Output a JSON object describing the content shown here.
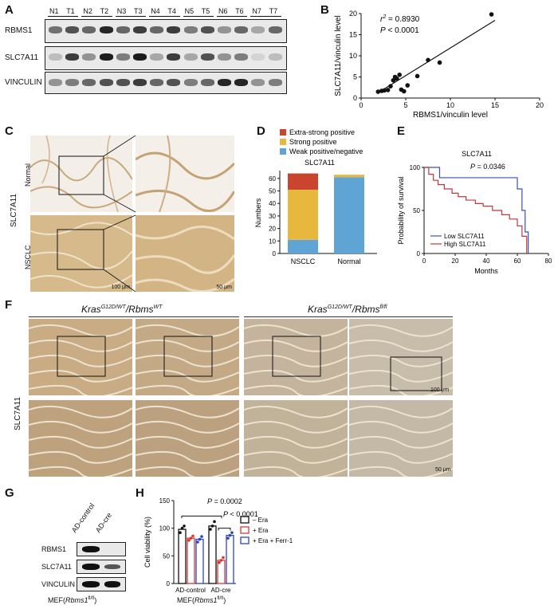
{
  "panels": {
    "A": {
      "label": "A",
      "lanes": [
        "N1",
        "T1",
        "N2",
        "T2",
        "N3",
        "T3",
        "N4",
        "T4",
        "N5",
        "T5",
        "N6",
        "T6",
        "N7",
        "T7"
      ],
      "rows": [
        "RBMS1",
        "SLC7A11",
        "VINCULIN"
      ]
    },
    "B": {
      "label": "B",
      "stats_r": "r",
      "stats_r_exp": "2",
      "stats_r_val": " = 0.8930",
      "stats_p": "P",
      "stats_p_val": " < 0.0001"
    },
    "C": {
      "label": "C",
      "side_label": "SLC7A11",
      "row_normal": "Normal",
      "row_nsclc": "NSCLC",
      "scale_100": "100 μm",
      "scale_50": "50 μm"
    },
    "D": {
      "label": "D",
      "legend": [
        "Extra-strong positive",
        "Strong positive",
        "Weak positive/negative"
      ]
    },
    "E": {
      "label": "E",
      "title": "SLC7A11",
      "p_label": "P",
      "p_value": " = 0.0346",
      "legend": [
        "Low  SLC7A11",
        "High SLC7A11"
      ]
    },
    "F": {
      "label": "F",
      "side_label": "SLC7A11",
      "group1_base": "Kras",
      "group1_sup1": "G12D/WT",
      "group1_mid": "/Rbms",
      "group1_sup2": "WT",
      "group2_base": "Kras",
      "group2_sup1": "G12D/WT",
      "group2_mid": "/Rbms",
      "group2_sup2": "fl/fl",
      "scale_100": "100 μm",
      "scale_50": "50 μm"
    },
    "G": {
      "label": "G",
      "lanes": [
        "AD-control",
        "AD-cre"
      ],
      "rows": [
        "RBMS1",
        "SLC7A11",
        "VINCULIN"
      ],
      "footer_base": "MEF(",
      "footer_italic": "Rbms1",
      "footer_sup": "fl/fl",
      "footer_end": ")"
    },
    "H": {
      "label": "H",
      "p1_label": "P",
      "p1_value": " = 0.0002",
      "p2_label": "P",
      "p2_value": " < 0.0001",
      "legend": [
        "– Era",
        "+ Era",
        "+ Era + Ferr-1"
      ],
      "footer_base": "MEF(",
      "footer_italic": "Rbms1",
      "footer_sup": "fl/fl",
      "footer_end": ")"
    }
  },
  "colors": {
    "extra_strong": "#c9452e",
    "strong": "#e8b83e",
    "weak": "#5ea4d4",
    "low_line": "#3a4fb8",
    "high_line": "#c0383a",
    "h_ctrl": "#111111",
    "h_era": "#d83a32",
    "h_ferr": "#2e44c4",
    "ihc_normal_bg": "#f2ede6",
    "ihc_tissue": "#c9a97a"
  },
  "chart_data": [
    {
      "type": "scatter",
      "panel": "B",
      "xlabel": "RBMS1/vinculin level",
      "ylabel": "SLC7A11/vinculin level",
      "xlim": [
        0,
        20
      ],
      "ylim": [
        0,
        20
      ],
      "xticks": [
        0,
        5,
        10,
        15,
        20
      ],
      "yticks": [
        0,
        5,
        10,
        15,
        20
      ],
      "points": [
        {
          "x": 1.9,
          "y": 1.5
        },
        {
          "x": 2.3,
          "y": 1.7
        },
        {
          "x": 2.6,
          "y": 1.8
        },
        {
          "x": 3.0,
          "y": 1.9
        },
        {
          "x": 3.3,
          "y": 2.8
        },
        {
          "x": 3.6,
          "y": 4.2
        },
        {
          "x": 3.8,
          "y": 5.0
        },
        {
          "x": 4.0,
          "y": 4.6
        },
        {
          "x": 4.3,
          "y": 5.5
        },
        {
          "x": 4.5,
          "y": 2.0
        },
        {
          "x": 4.8,
          "y": 1.6
        },
        {
          "x": 5.2,
          "y": 3.0
        },
        {
          "x": 6.3,
          "y": 5.2
        },
        {
          "x": 7.5,
          "y": 9.0
        },
        {
          "x": 8.8,
          "y": 8.4
        },
        {
          "x": 14.6,
          "y": 19.8
        }
      ],
      "fit": {
        "x": [
          2,
          15
        ],
        "y": [
          1.4,
          18.4
        ]
      }
    },
    {
      "type": "bar",
      "panel": "D",
      "title": "SLC7A11",
      "ylabel": "Numbers",
      "categories": [
        "NSCLC",
        "Normal"
      ],
      "ylim": [
        0,
        65
      ],
      "yticks": [
        0,
        10,
        20,
        30,
        40,
        50,
        60
      ],
      "series": [
        {
          "name": "Weak positive/negative",
          "values": [
            11,
            61
          ]
        },
        {
          "name": "Strong positive",
          "values": [
            40,
            2
          ]
        },
        {
          "name": "Extra-strong positive",
          "values": [
            13,
            0
          ]
        }
      ]
    },
    {
      "type": "line",
      "panel": "E",
      "xlabel": "Months",
      "ylabel": "Probability of survival",
      "xlim": [
        0,
        80
      ],
      "ylim": [
        0,
        100
      ],
      "xticks": [
        0,
        20,
        40,
        60,
        80
      ],
      "yticks": [
        0,
        50,
        100
      ],
      "series": [
        {
          "name": "Low  SLC7A11",
          "x": [
            0,
            10,
            10,
            60,
            60,
            63,
            63,
            65,
            65,
            67,
            67
          ],
          "y": [
            100,
            100,
            88,
            88,
            75,
            75,
            50,
            50,
            25,
            25,
            0
          ]
        },
        {
          "name": "High SLC7A11",
          "x": [
            0,
            3,
            3,
            6,
            6,
            9,
            9,
            13,
            13,
            18,
            18,
            22,
            22,
            27,
            27,
            33,
            33,
            38,
            38,
            44,
            44,
            50,
            50,
            55,
            55,
            60,
            60,
            63,
            63,
            66,
            66
          ],
          "y": [
            100,
            100,
            92,
            92,
            85,
            85,
            80,
            80,
            75,
            75,
            70,
            70,
            66,
            66,
            62,
            62,
            58,
            58,
            55,
            55,
            50,
            50,
            45,
            45,
            40,
            40,
            32,
            32,
            20,
            20,
            0
          ]
        }
      ]
    },
    {
      "type": "bar",
      "panel": "H",
      "ylabel": "Cell viability (%)",
      "categories": [
        "AD-control",
        "AD-cre"
      ],
      "ylim": [
        0,
        150
      ],
      "yticks": [
        0,
        50,
        100,
        150
      ],
      "series": [
        {
          "name": "– Era",
          "values": [
            98,
            104
          ],
          "points": [
            [
              92,
              100,
              104
            ],
            [
              98,
              104,
              112
            ]
          ]
        },
        {
          "name": "+ Era",
          "values": [
            82,
            42
          ],
          "points": [
            [
              78,
              82,
              86
            ],
            [
              38,
              42,
              47
            ]
          ]
        },
        {
          "name": "+ Era + Ferr-1",
          "values": [
            80,
            87
          ],
          "points": [
            [
              75,
              80,
              85
            ],
            [
              82,
              87,
              92
            ]
          ]
        }
      ]
    }
  ]
}
